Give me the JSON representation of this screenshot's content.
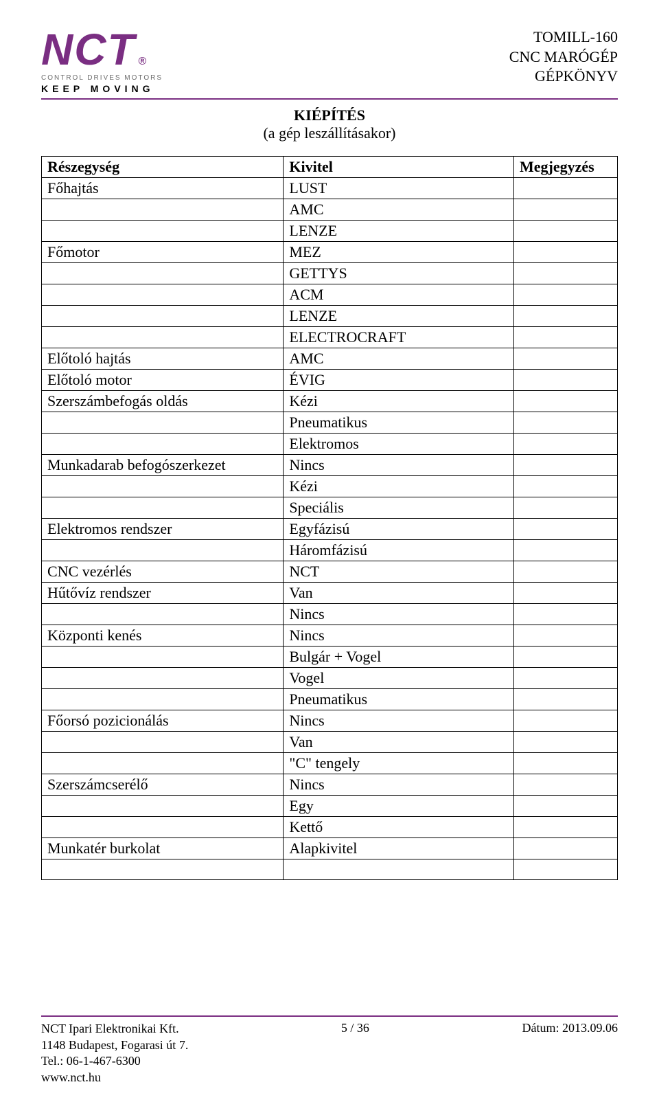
{
  "header": {
    "logo_text": "NCT",
    "logo_reg": "®",
    "logo_sub1": "CONTROL DRIVES MOTORS",
    "logo_sub2": "KEEP MOVING",
    "doc_line1": "TOMILL-160",
    "doc_line2": "CNC MARÓGÉP",
    "doc_line3": "GÉPKÖNYV"
  },
  "section": {
    "title": "KIÉPÍTÉS",
    "subtitle": "(a gép leszállításakor)"
  },
  "table": {
    "columns": [
      "Részegység",
      "Kivitel",
      "Megjegyzés"
    ],
    "rows": [
      [
        "Főhajtás",
        "LUST",
        ""
      ],
      [
        "",
        "AMC",
        ""
      ],
      [
        "",
        "LENZE",
        ""
      ],
      [
        "Főmotor",
        "MEZ",
        ""
      ],
      [
        "",
        "GETTYS",
        ""
      ],
      [
        "",
        "ACM",
        ""
      ],
      [
        "",
        "LENZE",
        ""
      ],
      [
        "",
        "ELECTROCRAFT",
        ""
      ],
      [
        "Előtoló hajtás",
        "AMC",
        ""
      ],
      [
        "Előtoló motor",
        "ÉVIG",
        ""
      ],
      [
        "Szerszámbefogás oldás",
        "Kézi",
        ""
      ],
      [
        "",
        "Pneumatikus",
        ""
      ],
      [
        "",
        "Elektromos",
        ""
      ],
      [
        "Munkadarab befogószerkezet",
        "Nincs",
        ""
      ],
      [
        "",
        "Kézi",
        ""
      ],
      [
        "",
        "Speciális",
        ""
      ],
      [
        "Elektromos rendszer",
        "Egyfázisú",
        ""
      ],
      [
        "",
        "Háromfázisú",
        ""
      ],
      [
        "CNC vezérlés",
        "NCT",
        ""
      ],
      [
        "Hűtővíz rendszer",
        "Van",
        ""
      ],
      [
        "",
        "Nincs",
        ""
      ],
      [
        "Központi kenés",
        "Nincs",
        ""
      ],
      [
        "",
        "Bulgár + Vogel",
        ""
      ],
      [
        "",
        "Vogel",
        ""
      ],
      [
        "",
        "Pneumatikus",
        ""
      ],
      [
        "Főorsó pozicionálás",
        "Nincs",
        ""
      ],
      [
        "",
        "Van",
        ""
      ],
      [
        "",
        "\"C\" tengely",
        ""
      ],
      [
        "Szerszámcserélő",
        "Nincs",
        ""
      ],
      [
        "",
        "Egy",
        ""
      ],
      [
        "",
        "Kettő",
        ""
      ],
      [
        "Munkatér burkolat",
        "Alapkivitel",
        ""
      ],
      [
        "",
        "",
        ""
      ]
    ]
  },
  "footer": {
    "company": "NCT Ipari Elektronikai Kft.",
    "address": "1148 Budapest, Fogarasi út 7.",
    "tel": "Tel.: 06-1-467-6300",
    "web": "www.nct.hu",
    "page": "5 / 36",
    "date": "Dátum: 2013.09.06"
  },
  "colors": {
    "brand": "#7a2e82",
    "text": "#000000",
    "subgrey": "#6b6b6b",
    "background": "#ffffff"
  }
}
